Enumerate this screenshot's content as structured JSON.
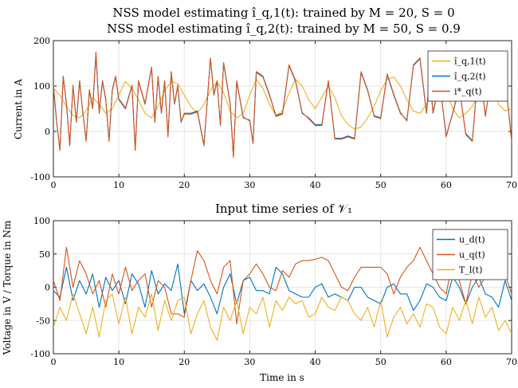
{
  "chart_data": [
    {
      "type": "line",
      "title": "NSS model estimating î_q,1(t): trained by M = 20, S = 0",
      "subtitle": "NSS model estimating î_q,2(t): trained by M = 50, S = 0.9",
      "xlabel": "",
      "ylabel": "Current in A",
      "xlim": [
        0,
        70
      ],
      "ylim": [
        -100,
        200
      ],
      "xticks": [
        "0",
        "10",
        "20",
        "30",
        "40",
        "50",
        "60",
        "70"
      ],
      "yticks": [
        "-100",
        "0",
        "100",
        "200"
      ],
      "grid": true,
      "legend_position": "top-right",
      "series": [
        {
          "name": "î_q,1(t)",
          "color": "#EDB120",
          "x": [
            0,
            1,
            2,
            3,
            4,
            5,
            6,
            7,
            8,
            9,
            10,
            11,
            12,
            13,
            14,
            15,
            16,
            17,
            18,
            19,
            20,
            21,
            22,
            23,
            24,
            25,
            26,
            27,
            28,
            29,
            30,
            31,
            32,
            33,
            34,
            35,
            36,
            37,
            38,
            39,
            40,
            41,
            42,
            43,
            44,
            45,
            46,
            47,
            48,
            49,
            50,
            51,
            52,
            53,
            54,
            55,
            56,
            57,
            58,
            59,
            60,
            61,
            62,
            63,
            64,
            65,
            66,
            67,
            68,
            69,
            70
          ],
          "y": [
            95,
            80,
            55,
            35,
            30,
            45,
            75,
            60,
            40,
            50,
            80,
            110,
            95,
            70,
            40,
            30,
            55,
            90,
            110,
            105,
            80,
            55,
            40,
            60,
            90,
            110,
            85,
            45,
            30,
            40,
            80,
            115,
            95,
            60,
            35,
            45,
            85,
            115,
            100,
            70,
            50,
            75,
            100,
            75,
            35,
            15,
            5,
            10,
            30,
            55,
            90,
            115,
            120,
            100,
            70,
            45,
            40,
            60,
            95,
            110,
            90,
            50,
            30,
            40,
            55,
            85,
            110,
            100,
            60,
            45,
            50
          ]
        },
        {
          "name": "î_q,2(t)",
          "color": "#0072BD",
          "x": [
            0,
            0.5,
            1,
            1.5,
            2,
            2.5,
            3,
            3.5,
            4,
            4.5,
            5,
            5.5,
            6,
            6.5,
            7,
            7.5,
            8,
            8.5,
            9,
            9.5,
            10,
            11,
            12,
            12.5,
            13,
            14,
            15,
            15.5,
            16,
            16.5,
            17,
            17.5,
            18,
            18.5,
            19,
            19.5,
            20,
            21,
            22,
            23,
            24,
            24.5,
            25,
            25.5,
            26,
            27,
            27.5,
            28,
            29,
            30,
            30.5,
            31,
            32,
            33,
            34,
            35,
            36,
            37,
            38,
            39,
            40,
            41,
            42,
            43,
            44,
            45,
            46,
            47,
            48,
            49,
            50,
            51,
            52,
            53,
            54,
            55,
            56,
            56.5,
            57,
            57.5,
            58,
            59,
            60,
            61,
            62,
            63,
            64,
            65,
            66,
            67,
            68,
            69,
            70
          ],
          "y": [
            100,
            20,
            -40,
            120,
            60,
            -30,
            100,
            20,
            110,
            40,
            -20,
            90,
            50,
            170,
            40,
            110,
            70,
            -20,
            90,
            120,
            70,
            50,
            100,
            -40,
            110,
            60,
            140,
            20,
            120,
            40,
            110,
            -10,
            130,
            60,
            100,
            20,
            40,
            40,
            45,
            -30,
            160,
            80,
            110,
            15,
            150,
            60,
            -55,
            110,
            30,
            25,
            -25,
            130,
            120,
            80,
            35,
            40,
            145,
            110,
            40,
            30,
            15,
            15,
            110,
            -15,
            -15,
            -10,
            -15,
            130,
            90,
            35,
            30,
            125,
            80,
            40,
            25,
            145,
            160,
            100,
            40,
            120,
            40,
            110,
            -10,
            40,
            95,
            -5,
            -20,
            150,
            35,
            130,
            145,
            120,
            -20
          ]
        },
        {
          "name": "i*_q(t)",
          "color": "#D95319",
          "x": [
            0,
            0.5,
            1,
            1.5,
            2,
            2.5,
            3,
            3.5,
            4,
            4.5,
            5,
            5.5,
            6,
            6.5,
            7,
            7.5,
            8,
            8.5,
            9,
            9.5,
            10,
            11,
            12,
            12.5,
            13,
            14,
            15,
            15.5,
            16,
            16.5,
            17,
            17.5,
            18,
            18.5,
            19,
            19.5,
            20,
            21,
            22,
            23,
            24,
            24.5,
            25,
            25.5,
            26,
            27,
            27.5,
            28,
            29,
            30,
            30.5,
            31,
            32,
            33,
            34,
            35,
            36,
            37,
            38,
            39,
            40,
            41,
            42,
            43,
            44,
            45,
            46,
            47,
            48,
            49,
            50,
            51,
            52,
            53,
            54,
            55,
            56,
            56.5,
            57,
            57.5,
            58,
            59,
            60,
            61,
            62,
            63,
            64,
            65,
            66,
            67,
            68,
            69,
            70
          ],
          "y": [
            102,
            22,
            -42,
            122,
            62,
            -32,
            102,
            22,
            112,
            42,
            -22,
            92,
            52,
            175,
            42,
            112,
            72,
            -22,
            92,
            122,
            72,
            52,
            102,
            -42,
            112,
            62,
            142,
            22,
            122,
            42,
            112,
            -12,
            132,
            62,
            102,
            22,
            38,
            38,
            43,
            -32,
            162,
            82,
            112,
            13,
            152,
            62,
            -57,
            112,
            32,
            23,
            -27,
            132,
            122,
            82,
            33,
            38,
            147,
            112,
            42,
            28,
            13,
            13,
            112,
            -17,
            -17,
            -12,
            -17,
            132,
            92,
            33,
            28,
            127,
            82,
            42,
            23,
            147,
            162,
            102,
            42,
            122,
            42,
            112,
            -12,
            42,
            97,
            -7,
            -22,
            152,
            33,
            132,
            147,
            122,
            -22
          ]
        }
      ]
    },
    {
      "type": "line",
      "title": "Input time series of 𝒱₁",
      "xlabel": "Time in s",
      "ylabel": "Voltage in V / Torque in Nm",
      "xlim": [
        0,
        70
      ],
      "ylim": [
        -100,
        100
      ],
      "xticks": [
        "0",
        "10",
        "20",
        "30",
        "40",
        "50",
        "60",
        "70"
      ],
      "yticks": [
        "-100",
        "-50",
        "0",
        "50",
        "100"
      ],
      "grid": true,
      "legend_position": "top-right",
      "series": [
        {
          "name": "u_d(t)",
          "color": "#0072BD",
          "x": [
            0,
            1,
            2,
            3,
            4,
            5,
            6,
            7,
            8,
            9,
            10,
            11,
            12,
            13,
            14,
            15,
            16,
            17,
            18,
            19,
            20,
            21,
            22,
            23,
            24,
            25,
            26,
            27,
            28,
            29,
            30,
            31,
            32,
            33,
            34,
            35,
            36,
            37,
            38,
            39,
            40,
            41,
            42,
            43,
            44,
            45,
            46,
            47,
            48,
            49,
            50,
            51,
            52,
            53,
            54,
            55,
            56,
            57,
            58,
            59,
            60,
            61,
            62,
            63,
            64,
            65,
            66,
            67,
            68,
            69,
            70
          ],
          "y": [
            -5,
            -15,
            30,
            -20,
            10,
            -10,
            20,
            -30,
            15,
            -5,
            10,
            -25,
            20,
            5,
            -30,
            25,
            -10,
            5,
            -5,
            35,
            -40,
            10,
            -5,
            5,
            -15,
            -40,
            0,
            20,
            -25,
            10,
            15,
            -5,
            -5,
            -10,
            30,
            20,
            -5,
            -10,
            -15,
            -15,
            0,
            5,
            -15,
            -10,
            -15,
            -20,
            0,
            0,
            -15,
            -20,
            -25,
            0,
            5,
            -10,
            -10,
            -35,
            -20,
            5,
            0,
            -15,
            -20,
            15,
            0,
            -25,
            0,
            15,
            -10,
            -15,
            -30,
            10,
            -20
          ]
        },
        {
          "name": "u_q(t)",
          "color": "#D95319",
          "x": [
            0,
            1,
            2,
            3,
            4,
            5,
            6,
            7,
            8,
            9,
            10,
            11,
            12,
            13,
            14,
            15,
            16,
            17,
            18,
            19,
            20,
            21,
            22,
            23,
            24,
            25,
            26,
            27,
            28,
            29,
            30,
            31,
            32,
            33,
            34,
            35,
            36,
            37,
            38,
            39,
            40,
            41,
            42,
            43,
            44,
            45,
            46,
            47,
            48,
            49,
            50,
            51,
            52,
            53,
            54,
            55,
            56,
            57,
            58,
            59,
            60,
            61,
            62,
            63,
            64,
            65,
            66,
            67,
            68,
            69,
            70
          ],
          "y": [
            10,
            -20,
            60,
            0,
            40,
            20,
            -10,
            10,
            -30,
            20,
            -10,
            30,
            -5,
            10,
            20,
            -30,
            10,
            0,
            -40,
            -40,
            -45,
            10,
            55,
            40,
            10,
            -10,
            30,
            40,
            -55,
            10,
            20,
            35,
            20,
            0,
            -5,
            25,
            15,
            35,
            40,
            40,
            42,
            45,
            40,
            20,
            0,
            -5,
            15,
            30,
            30,
            30,
            30,
            20,
            -10,
            15,
            30,
            40,
            60,
            40,
            20,
            0,
            -10,
            40,
            10,
            -25,
            20,
            0,
            15,
            30,
            45,
            20,
            -10
          ]
        },
        {
          "name": "T_l(t)",
          "color": "#EDB120",
          "x": [
            0,
            1,
            2,
            3,
            4,
            5,
            6,
            7,
            8,
            9,
            10,
            11,
            12,
            13,
            14,
            15,
            16,
            17,
            18,
            19,
            20,
            21,
            22,
            23,
            24,
            25,
            26,
            27,
            28,
            29,
            30,
            31,
            32,
            33,
            34,
            35,
            36,
            37,
            38,
            39,
            40,
            41,
            42,
            43,
            44,
            45,
            46,
            47,
            48,
            49,
            50,
            51,
            52,
            53,
            54,
            55,
            56,
            57,
            58,
            59,
            60,
            61,
            62,
            63,
            64,
            65,
            66,
            67,
            68,
            69,
            70
          ],
          "y": [
            -60,
            -30,
            -50,
            -10,
            -40,
            -70,
            -30,
            -75,
            -20,
            -10,
            -55,
            -15,
            -70,
            -30,
            -45,
            -10,
            -65,
            -20,
            -50,
            -20,
            -15,
            -70,
            -40,
            -20,
            -60,
            -80,
            -30,
            -50,
            -20,
            -70,
            -30,
            -40,
            -15,
            -60,
            -20,
            -35,
            -15,
            -25,
            -20,
            -45,
            -40,
            -15,
            -30,
            -35,
            -15,
            -20,
            -40,
            -50,
            -30,
            -60,
            -20,
            -75,
            -45,
            -30,
            -55,
            -40,
            -60,
            -25,
            -30,
            -60,
            -70,
            -30,
            -50,
            -20,
            -55,
            -15,
            -45,
            -30,
            -65,
            -50,
            -70
          ]
        }
      ]
    }
  ]
}
